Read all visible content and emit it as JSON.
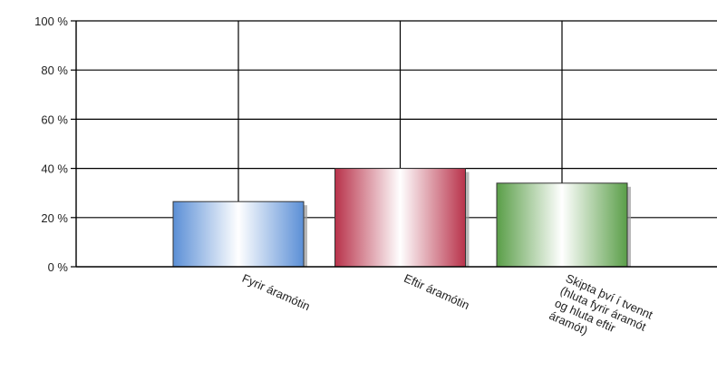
{
  "chart_data": {
    "type": "bar",
    "categories": [
      [
        "Fyrir áramótin"
      ],
      [
        "Eftir áramótin"
      ],
      [
        "Skipta því í tvennt",
        "(hluta fyrir áramót",
        "og hluta eftir",
        "áramót)"
      ]
    ],
    "values": [
      26.5,
      40,
      34
    ],
    "ylim": [
      0,
      100
    ],
    "yticks": [
      0,
      20,
      40,
      60,
      80,
      100
    ],
    "ytick_labels": [
      "0 %",
      "20 %",
      "40 %",
      "60 %",
      "80 %",
      "100 %"
    ],
    "grid": true,
    "legend": "none",
    "colors": {
      "bars": [
        {
          "edge": "#5b8fd6",
          "mid": "#ffffff"
        },
        {
          "edge": "#b8324a",
          "mid": "#ffffff"
        },
        {
          "edge": "#5a9e48",
          "mid": "#ffffff"
        }
      ],
      "axis": "#000000",
      "grid": "#000000",
      "shadow": "#9a9a9a"
    }
  }
}
